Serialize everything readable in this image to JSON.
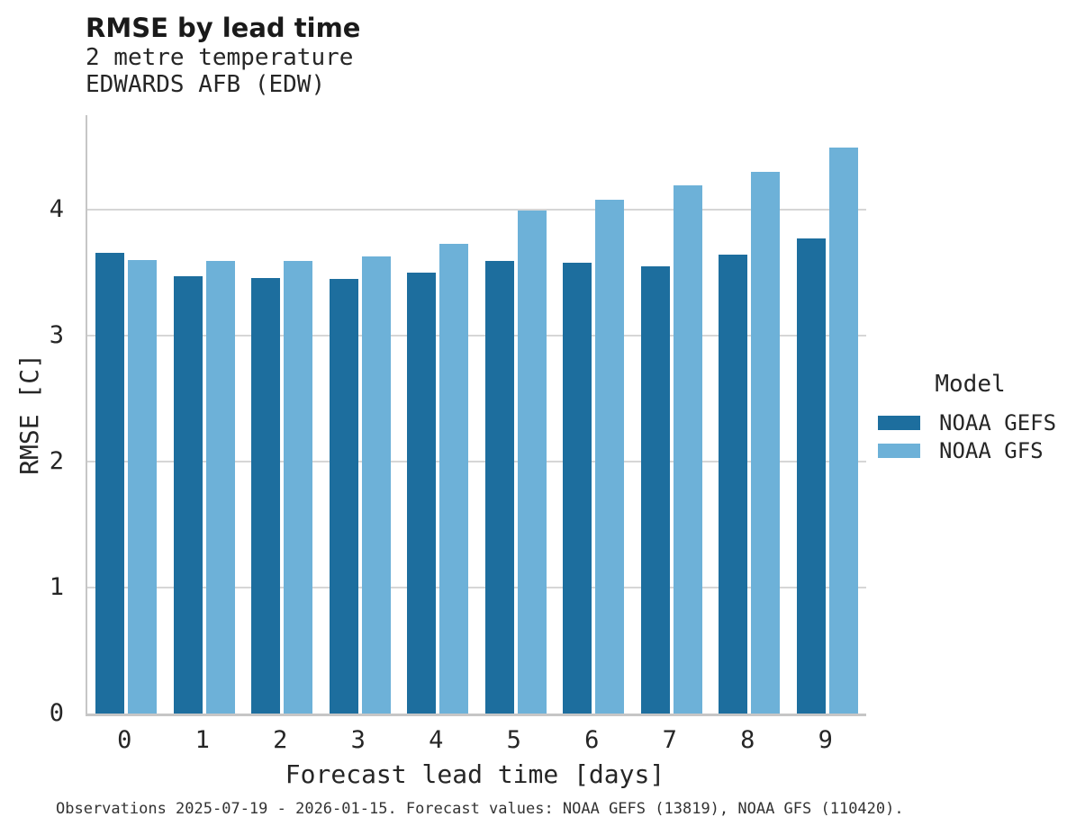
{
  "chart_data": {
    "type": "bar",
    "title": "RMSE by lead time",
    "subtitle": [
      "2 metre temperature",
      "EDWARDS AFB (EDW)"
    ],
    "xlabel": "Forecast lead time [days]",
    "ylabel": "RMSE [C]",
    "categories": [
      "0",
      "1",
      "2",
      "3",
      "4",
      "5",
      "6",
      "7",
      "8",
      "9"
    ],
    "series": [
      {
        "name": "NOAA GEFS",
        "color": "#1d6e9e",
        "values": [
          3.66,
          3.47,
          3.46,
          3.45,
          3.5,
          3.59,
          3.58,
          3.55,
          3.64,
          3.77
        ]
      },
      {
        "name": "NOAA GFS",
        "color": "#6db1d8",
        "values": [
          3.6,
          3.59,
          3.59,
          3.63,
          3.73,
          3.99,
          4.08,
          4.19,
          4.3,
          4.49
        ]
      }
    ],
    "ylim": [
      0,
      4.75
    ],
    "yticks": [
      0,
      1,
      2,
      3,
      4
    ],
    "grid": "horizontal",
    "grid_color": "#d6d6d6",
    "axis_color": "#c6c6c6",
    "legend_title": "Model",
    "legend_position": "right"
  },
  "legend": {
    "title": "Model",
    "items": [
      {
        "label": "NOAA GEFS",
        "color": "#1d6e9e"
      },
      {
        "label": "NOAA GFS",
        "color": "#6db1d8"
      }
    ]
  },
  "caption": "Observations 2025-07-19 - 2026-01-15. Forecast values: NOAA GEFS (13819), NOAA GFS (110420)."
}
